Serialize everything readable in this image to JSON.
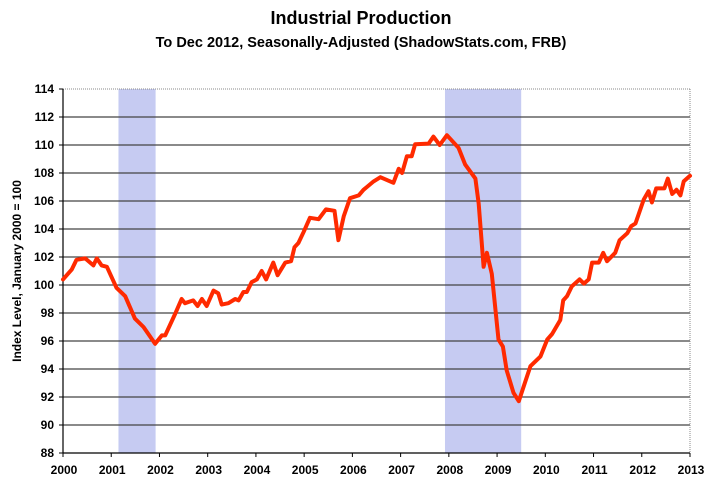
{
  "chart_data": {
    "type": "line",
    "title": "Industrial Production",
    "subtitle": "To Dec 2012, Seasonally-Adjusted (ShadowStats.com, FRB)",
    "xlabel": "",
    "ylabel": "Index Level, January 2000 = 100",
    "xlim": [
      2000,
      2013
    ],
    "ylim": [
      88,
      114
    ],
    "x_ticks": [
      "2000",
      "2001",
      "2002",
      "2003",
      "2004",
      "2005",
      "2006",
      "2007",
      "2008",
      "2009",
      "2010",
      "2011",
      "2012",
      "2013"
    ],
    "y_ticks": [
      "88",
      "90",
      "92",
      "94",
      "96",
      "98",
      "100",
      "102",
      "104",
      "106",
      "108",
      "110",
      "112",
      "114"
    ],
    "grid": true,
    "line_color": "#ff2a00",
    "recession_color": "#c6cbf2",
    "recessions": [
      [
        2001.15,
        2001.92
      ],
      [
        2007.92,
        2009.5
      ]
    ],
    "series": [
      {
        "name": "Industrial Production",
        "x": [
          2000.0,
          2000.18,
          2000.28,
          2000.46,
          2000.63,
          2000.7,
          2000.8,
          2000.91,
          2001.11,
          2001.29,
          2001.49,
          2001.67,
          2001.91,
          2002.05,
          2002.12,
          2002.32,
          2002.46,
          2002.53,
          2002.7,
          2002.79,
          2002.88,
          2002.98,
          2003.12,
          2003.22,
          2003.29,
          2003.43,
          2003.57,
          2003.64,
          2003.74,
          2003.81,
          2003.91,
          2004.02,
          2004.12,
          2004.21,
          2004.36,
          2004.45,
          2004.61,
          2004.73,
          2004.8,
          2004.88,
          2004.99,
          2005.12,
          2005.3,
          2005.45,
          2005.63,
          2005.71,
          2005.82,
          2005.95,
          2006.13,
          2006.23,
          2006.3,
          2006.44,
          2006.58,
          2006.85,
          2006.96,
          2007.03,
          2007.13,
          2007.23,
          2007.3,
          2007.58,
          2007.68,
          2007.81,
          2007.96,
          2008.2,
          2008.34,
          2008.55,
          2008.62,
          2008.72,
          2008.79,
          2008.89,
          2009.03,
          2009.12,
          2009.2,
          2009.34,
          2009.45,
          2009.69,
          2009.9,
          2010.04,
          2010.14,
          2010.31,
          2010.37,
          2010.45,
          2010.55,
          2010.71,
          2010.8,
          2010.9,
          2010.97,
          2011.11,
          2011.2,
          2011.28,
          2011.45,
          2011.54,
          2011.7,
          2011.78,
          2011.87,
          2012.04,
          2012.14,
          2012.21,
          2012.3,
          2012.47,
          2012.54,
          2012.63,
          2012.72,
          2012.8,
          2012.87,
          2013.0
        ],
        "y": [
          100.4,
          101.1,
          101.8,
          101.9,
          101.4,
          101.9,
          101.4,
          101.3,
          99.8,
          99.2,
          97.6,
          97.0,
          95.8,
          96.4,
          96.4,
          97.9,
          99.0,
          98.7,
          98.9,
          98.5,
          99.0,
          98.5,
          99.6,
          99.4,
          98.6,
          98.7,
          99.0,
          98.9,
          99.5,
          99.5,
          100.2,
          100.4,
          101.0,
          100.4,
          101.6,
          100.7,
          101.6,
          101.7,
          102.7,
          103.0,
          103.8,
          104.8,
          104.7,
          105.4,
          105.3,
          103.2,
          104.9,
          106.2,
          106.4,
          106.8,
          107.0,
          107.4,
          107.7,
          107.3,
          108.3,
          108.0,
          109.2,
          109.2,
          110.05,
          110.1,
          110.6,
          110.0,
          110.7,
          109.8,
          108.6,
          107.6,
          105.8,
          101.3,
          102.3,
          100.8,
          96.1,
          95.6,
          93.9,
          92.3,
          91.7,
          94.2,
          94.9,
          96.1,
          96.5,
          97.5,
          98.9,
          99.2,
          99.9,
          100.4,
          100.1,
          100.4,
          101.6,
          101.6,
          102.3,
          101.7,
          102.3,
          103.2,
          103.7,
          104.2,
          104.4,
          106.1,
          106.7,
          105.9,
          106.9,
          106.9,
          107.6,
          106.5,
          106.8,
          106.4,
          107.4,
          107.8
        ]
      }
    ]
  }
}
